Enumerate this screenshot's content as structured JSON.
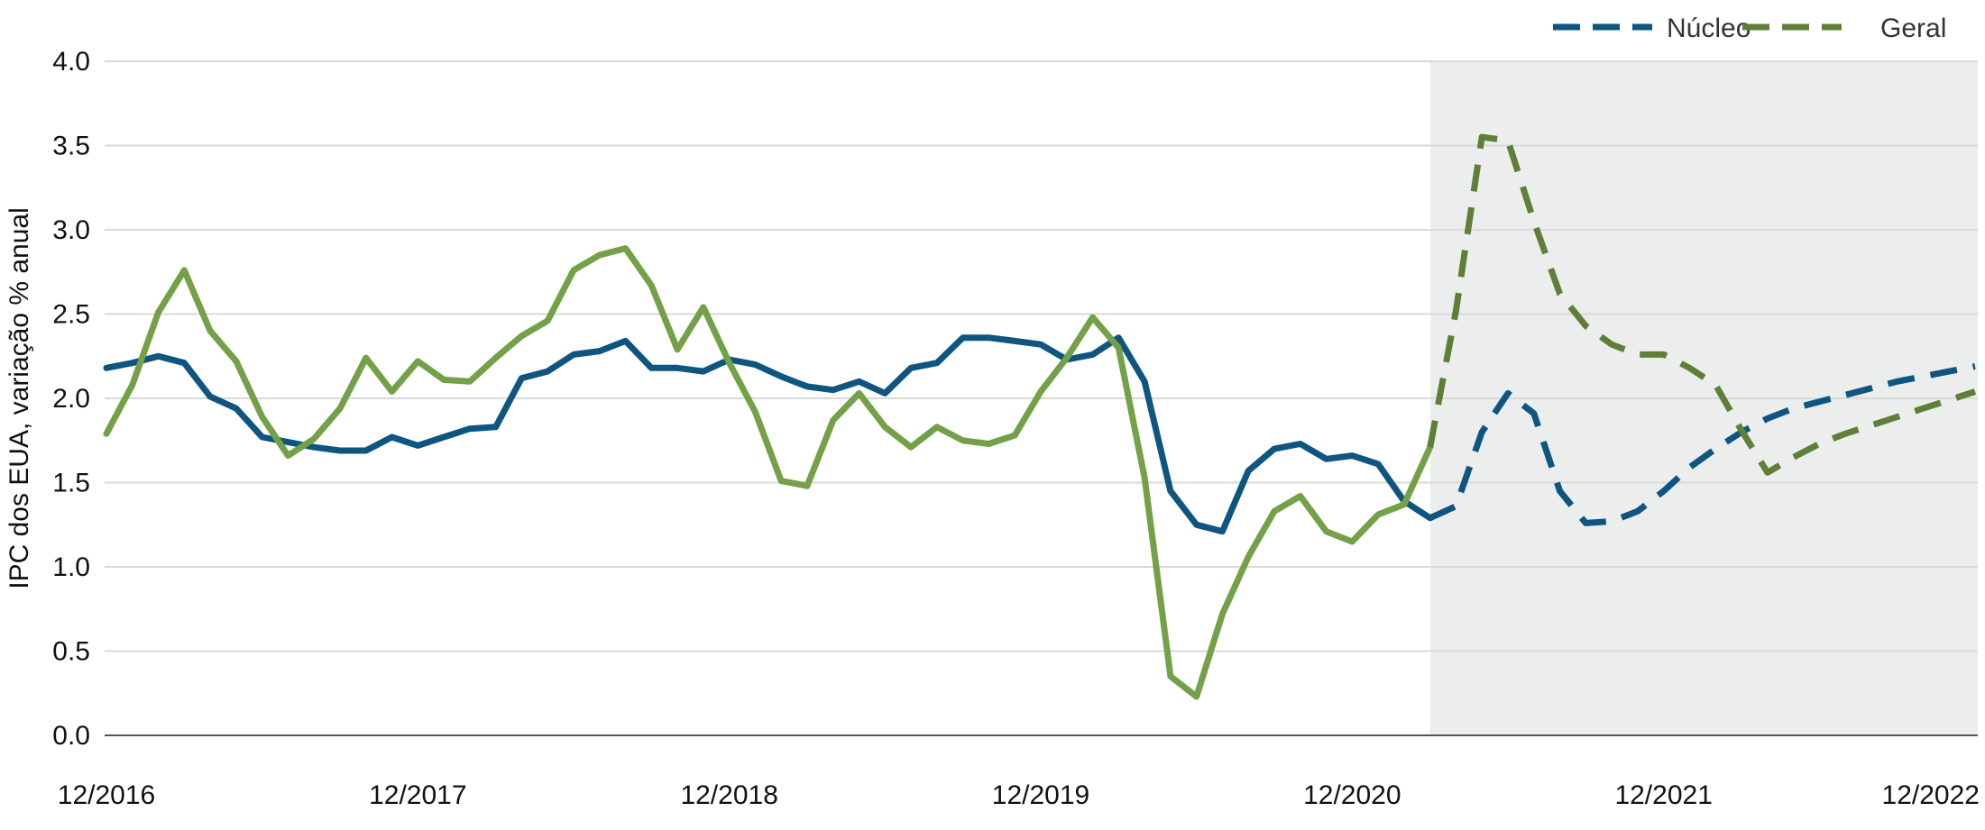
{
  "chart_data": {
    "type": "line",
    "title": "",
    "ylabel": "IPC dos EUA, variação % anual",
    "xlabel": "",
    "ylim": [
      0.0,
      4.0
    ],
    "yticks": [
      "0.0",
      "0.5",
      "1.0",
      "1.5",
      "2.0",
      "2.5",
      "3.0",
      "3.5",
      "4.0"
    ],
    "x_range": [
      "2016-12",
      "2022-12"
    ],
    "x_tick_labels": [
      "12/2016",
      "12/2017",
      "12/2018",
      "12/2019",
      "12/2020",
      "12/2021",
      "12/2022"
    ],
    "grid": "horizontal",
    "legend_position": "top-right",
    "forecast_region": {
      "from": "2021-03",
      "to": "2022-12",
      "color": "#eceeee"
    },
    "colors": {
      "core": "#0e5580",
      "headline": "#74a047",
      "headline_forecast": "#5f7f38",
      "grid": "#d9d9d9",
      "axis": "#555555"
    },
    "series": [
      {
        "name": "Núcleo",
        "style": "solid",
        "points": [
          [
            "2016-12",
            2.18
          ],
          [
            "2017-01",
            2.21
          ],
          [
            "2017-02",
            2.25
          ],
          [
            "2017-03",
            2.21
          ],
          [
            "2017-04",
            2.01
          ],
          [
            "2017-05",
            1.94
          ],
          [
            "2017-06",
            1.77
          ],
          [
            "2017-07",
            1.74
          ],
          [
            "2017-08",
            1.71
          ],
          [
            "2017-09",
            1.69
          ],
          [
            "2017-10",
            1.69
          ],
          [
            "2017-11",
            1.77
          ],
          [
            "2017-12",
            1.72
          ],
          [
            "2018-01",
            1.77
          ],
          [
            "2018-02",
            1.82
          ],
          [
            "2018-03",
            1.83
          ],
          [
            "2018-04",
            2.12
          ],
          [
            "2018-05",
            2.16
          ],
          [
            "2018-06",
            2.26
          ],
          [
            "2018-07",
            2.28
          ],
          [
            "2018-08",
            2.34
          ],
          [
            "2018-09",
            2.18
          ],
          [
            "2018-10",
            2.18
          ],
          [
            "2018-11",
            2.16
          ],
          [
            "2018-12",
            2.23
          ],
          [
            "2019-01",
            2.2
          ],
          [
            "2019-02",
            2.13
          ],
          [
            "2019-03",
            2.07
          ],
          [
            "2019-04",
            2.05
          ],
          [
            "2019-05",
            2.1
          ],
          [
            "2019-06",
            2.03
          ],
          [
            "2019-07",
            2.18
          ],
          [
            "2019-08",
            2.21
          ],
          [
            "2019-09",
            2.36
          ],
          [
            "2019-10",
            2.36
          ],
          [
            "2019-11",
            2.34
          ],
          [
            "2019-12",
            2.32
          ],
          [
            "2020-01",
            2.23
          ],
          [
            "2020-02",
            2.26
          ],
          [
            "2020-03",
            2.36
          ],
          [
            "2020-04",
            2.1
          ],
          [
            "2020-05",
            1.45
          ],
          [
            "2020-06",
            1.25
          ],
          [
            "2020-07",
            1.21
          ],
          [
            "2020-08",
            1.57
          ],
          [
            "2020-09",
            1.7
          ],
          [
            "2020-10",
            1.73
          ],
          [
            "2020-11",
            1.64
          ],
          [
            "2020-12",
            1.66
          ],
          [
            "2021-01",
            1.61
          ],
          [
            "2021-02",
            1.39
          ],
          [
            "2021-03",
            1.29
          ]
        ]
      },
      {
        "name": "Núcleo",
        "style": "dashed",
        "points": [
          [
            "2021-03",
            1.29
          ],
          [
            "2021-04",
            1.36
          ],
          [
            "2021-05",
            1.8
          ],
          [
            "2021-06",
            2.03
          ],
          [
            "2021-07",
            1.91
          ],
          [
            "2021-08",
            1.45
          ],
          [
            "2021-09",
            1.26
          ],
          [
            "2021-10",
            1.27
          ],
          [
            "2021-11",
            1.33
          ],
          [
            "2021-12",
            1.45
          ],
          [
            "2022-01",
            1.59
          ],
          [
            "2022-02",
            1.7
          ],
          [
            "2022-03",
            1.8
          ],
          [
            "2022-04",
            1.88
          ],
          [
            "2022-05",
            1.94
          ],
          [
            "2022-06",
            1.98
          ],
          [
            "2022-07",
            2.02
          ],
          [
            "2022-08",
            2.06
          ],
          [
            "2022-09",
            2.1
          ],
          [
            "2022-10",
            2.13
          ],
          [
            "2022-11",
            2.16
          ],
          [
            "2022-12",
            2.19
          ]
        ]
      },
      {
        "name": "Geral",
        "style": "solid",
        "points": [
          [
            "2016-12",
            1.79
          ],
          [
            "2017-01",
            2.08
          ],
          [
            "2017-02",
            2.51
          ],
          [
            "2017-03",
            2.76
          ],
          [
            "2017-04",
            2.4
          ],
          [
            "2017-05",
            2.22
          ],
          [
            "2017-06",
            1.89
          ],
          [
            "2017-07",
            1.66
          ],
          [
            "2017-08",
            1.76
          ],
          [
            "2017-09",
            1.94
          ],
          [
            "2017-10",
            2.24
          ],
          [
            "2017-11",
            2.04
          ],
          [
            "2017-12",
            2.22
          ],
          [
            "2018-01",
            2.11
          ],
          [
            "2018-02",
            2.1
          ],
          [
            "2018-03",
            2.24
          ],
          [
            "2018-04",
            2.37
          ],
          [
            "2018-05",
            2.46
          ],
          [
            "2018-06",
            2.76
          ],
          [
            "2018-07",
            2.85
          ],
          [
            "2018-08",
            2.89
          ],
          [
            "2018-09",
            2.67
          ],
          [
            "2018-10",
            2.29
          ],
          [
            "2018-11",
            2.54
          ],
          [
            "2018-12",
            2.21
          ],
          [
            "2019-01",
            1.92
          ],
          [
            "2019-02",
            1.51
          ],
          [
            "2019-03",
            1.48
          ],
          [
            "2019-04",
            1.87
          ],
          [
            "2019-05",
            2.03
          ],
          [
            "2019-06",
            1.83
          ],
          [
            "2019-07",
            1.71
          ],
          [
            "2019-08",
            1.83
          ],
          [
            "2019-09",
            1.75
          ],
          [
            "2019-10",
            1.73
          ],
          [
            "2019-11",
            1.78
          ],
          [
            "2019-12",
            2.04
          ],
          [
            "2020-01",
            2.24
          ],
          [
            "2020-02",
            2.48
          ],
          [
            "2020-03",
            2.3
          ],
          [
            "2020-04",
            1.53
          ],
          [
            "2020-05",
            0.35
          ],
          [
            "2020-06",
            0.23
          ],
          [
            "2020-07",
            0.72
          ],
          [
            "2020-08",
            1.06
          ],
          [
            "2020-09",
            1.33
          ],
          [
            "2020-10",
            1.42
          ],
          [
            "2020-11",
            1.21
          ],
          [
            "2020-12",
            1.15
          ],
          [
            "2021-01",
            1.31
          ],
          [
            "2021-02",
            1.37
          ],
          [
            "2021-03",
            1.71
          ]
        ]
      },
      {
        "name": "Geral",
        "style": "dashed",
        "points": [
          [
            "2021-03",
            1.71
          ],
          [
            "2021-04",
            2.52
          ],
          [
            "2021-05",
            3.55
          ],
          [
            "2021-06",
            3.53
          ],
          [
            "2021-07",
            3.05
          ],
          [
            "2021-08",
            2.62
          ],
          [
            "2021-09",
            2.43
          ],
          [
            "2021-10",
            2.32
          ],
          [
            "2021-11",
            2.26
          ],
          [
            "2021-12",
            2.26
          ],
          [
            "2022-01",
            2.18
          ],
          [
            "2022-02",
            2.08
          ],
          [
            "2022-03",
            1.81
          ],
          [
            "2022-04",
            1.56
          ],
          [
            "2022-05",
            1.65
          ],
          [
            "2022-06",
            1.73
          ],
          [
            "2022-07",
            1.79
          ],
          [
            "2022-08",
            1.84
          ],
          [
            "2022-09",
            1.89
          ],
          [
            "2022-10",
            1.94
          ],
          [
            "2022-11",
            1.99
          ],
          [
            "2022-12",
            2.04
          ]
        ]
      }
    ],
    "legend": [
      {
        "label": "Núcleo",
        "color": "#0e5580"
      },
      {
        "label": "Geral",
        "color": "#5f7f38"
      }
    ]
  }
}
